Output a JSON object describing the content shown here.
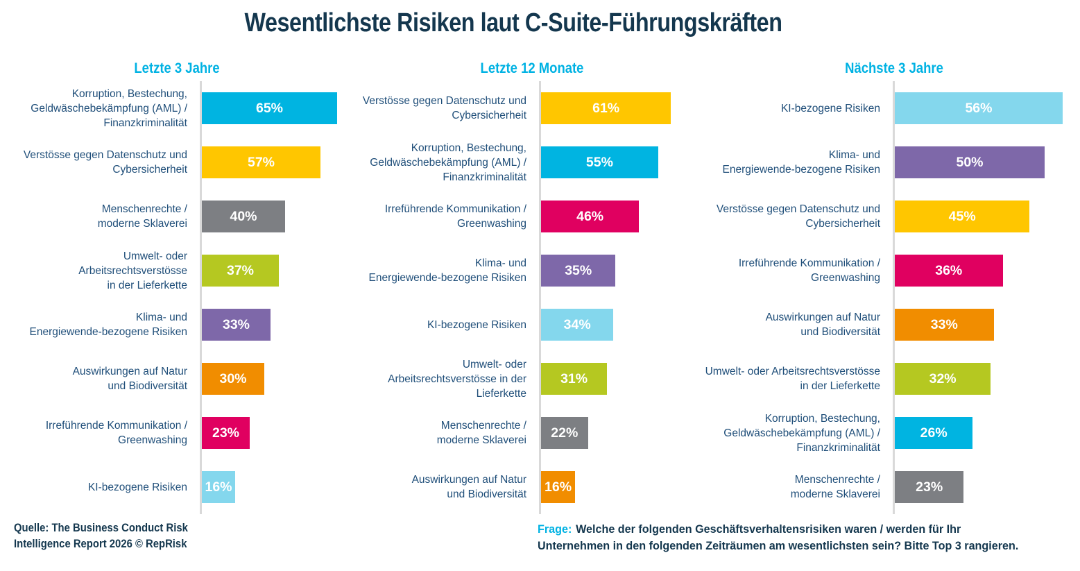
{
  "title": "Wesentlichste Risiken laut C-Suite-Führungskräften",
  "colors": {
    "cyan": "#00b4e1",
    "yellow": "#ffc600",
    "gray": "#7d7f83",
    "green": "#b5c821",
    "purple": "#7e68a9",
    "orange": "#f18d00",
    "pink": "#e00060",
    "lightblue": "#84d7ed",
    "title_navy": "#14374e",
    "label_blue": "#1f4e79",
    "header_cyan": "#00b2e3",
    "axis_gray": "#d9d9d9"
  },
  "source": {
    "line1": "Quelle: The Business Conduct Risk",
    "line2": "Intelligence Report 2026 © RepRisk"
  },
  "question": {
    "label": "Frage:",
    "line1": "Welche der folgenden Geschäftsverhaltensrisiken waren / werden für Ihr",
    "line2": "Unternehmen in den folgenden Zeiträumen am wesentlichsten sein? Bitte Top 3 rangieren."
  },
  "chart_data": [
    {
      "type": "bar",
      "orientation": "horizontal",
      "title": "Letzte 3 Jahre",
      "unit": "%",
      "xlim": [
        0,
        100
      ],
      "grid": false,
      "bars": [
        {
          "label": "Korruption, Bestechung,\nGeldwäschebekämpfung (AML) /\nFinanzkriminalität",
          "value": 65,
          "display": "65%",
          "color": "cyan"
        },
        {
          "label": "Verstösse gegen Datenschutz und\nCybersicherheit",
          "value": 57,
          "display": "57%",
          "color": "yellow"
        },
        {
          "label": "Menschenrechte /\nmoderne Sklaverei",
          "value": 40,
          "display": "40%",
          "color": "gray"
        },
        {
          "label": "Umwelt- oder\nArbeitsrechtsverstösse\nin der Lieferkette",
          "value": 37,
          "display": "37%",
          "color": "green"
        },
        {
          "label": "Klima- und\nEnergiewende-bezogene Risiken",
          "value": 33,
          "display": "33%",
          "color": "purple"
        },
        {
          "label": "Auswirkungen auf Natur\nund Biodiversität",
          "value": 30,
          "display": "30%",
          "color": "orange"
        },
        {
          "label": "Irreführende Kommunikation /\nGreenwashing",
          "value": 23,
          "display": "23%",
          "color": "pink"
        },
        {
          "label": "KI-bezogene Risiken",
          "value": 16,
          "display": "16%",
          "color": "lightblue"
        }
      ]
    },
    {
      "type": "bar",
      "orientation": "horizontal",
      "title": "Letzte 12 Monate",
      "unit": "%",
      "xlim": [
        0,
        100
      ],
      "grid": false,
      "bars": [
        {
          "label": "Verstösse gegen Datenschutz und\nCybersicherheit",
          "value": 61,
          "display": "61%",
          "color": "yellow"
        },
        {
          "label": "Korruption, Bestechung,\nGeldwäschebekämpfung (AML) /\nFinanzkriminalität",
          "value": 55,
          "display": "55%",
          "color": "cyan"
        },
        {
          "label": "Irreführende Kommunikation /\nGreenwashing",
          "value": 46,
          "display": "46%",
          "color": "pink"
        },
        {
          "label": "Klima- und\nEnergiewende-bezogene Risiken",
          "value": 35,
          "display": "35%",
          "color": "purple"
        },
        {
          "label": "KI-bezogene Risiken",
          "value": 34,
          "display": "34%",
          "color": "lightblue"
        },
        {
          "label": "Umwelt- oder\nArbeitsrechtsverstösse in der\nLieferkette",
          "value": 31,
          "display": "31%",
          "color": "green"
        },
        {
          "label": "Menschenrechte /\nmoderne Sklaverei",
          "value": 22,
          "display": "22%",
          "color": "gray"
        },
        {
          "label": "Auswirkungen auf Natur\nund Biodiversität",
          "value": 16,
          "display": "16%",
          "color": "orange"
        }
      ]
    },
    {
      "type": "bar",
      "orientation": "horizontal",
      "title": "Nächste 3 Jahre",
      "unit": "%",
      "xlim": [
        0,
        100
      ],
      "grid": false,
      "bars": [
        {
          "label": "KI-bezogene Risiken",
          "value": 56,
          "display": "56%",
          "color": "lightblue"
        },
        {
          "label": "Klima- und\nEnergiewende-bezogene Risiken",
          "value": 50,
          "display": "50%",
          "color": "purple"
        },
        {
          "label": "Verstösse gegen Datenschutz und\nCybersicherheit",
          "value": 45,
          "display": "45%",
          "color": "yellow"
        },
        {
          "label": "Irreführende Kommunikation /\nGreenwashing",
          "value": 36,
          "display": "36%",
          "color": "pink"
        },
        {
          "label": "Auswirkungen auf Natur\nund Biodiversität",
          "value": 33,
          "display": "33%",
          "color": "orange"
        },
        {
          "label": "Umwelt- oder Arbeitsrechtsverstösse\nin der Lieferkette",
          "value": 32,
          "display": "32%",
          "color": "green"
        },
        {
          "label": "Korruption, Bestechung,\nGeldwäschebekämpfung (AML) /\nFinanzkriminalität",
          "value": 26,
          "display": "26%",
          "color": "cyan"
        },
        {
          "label": "Menschenrechte /\nmoderne Sklaverei",
          "value": 23,
          "display": "23%",
          "color": "gray"
        }
      ]
    }
  ]
}
